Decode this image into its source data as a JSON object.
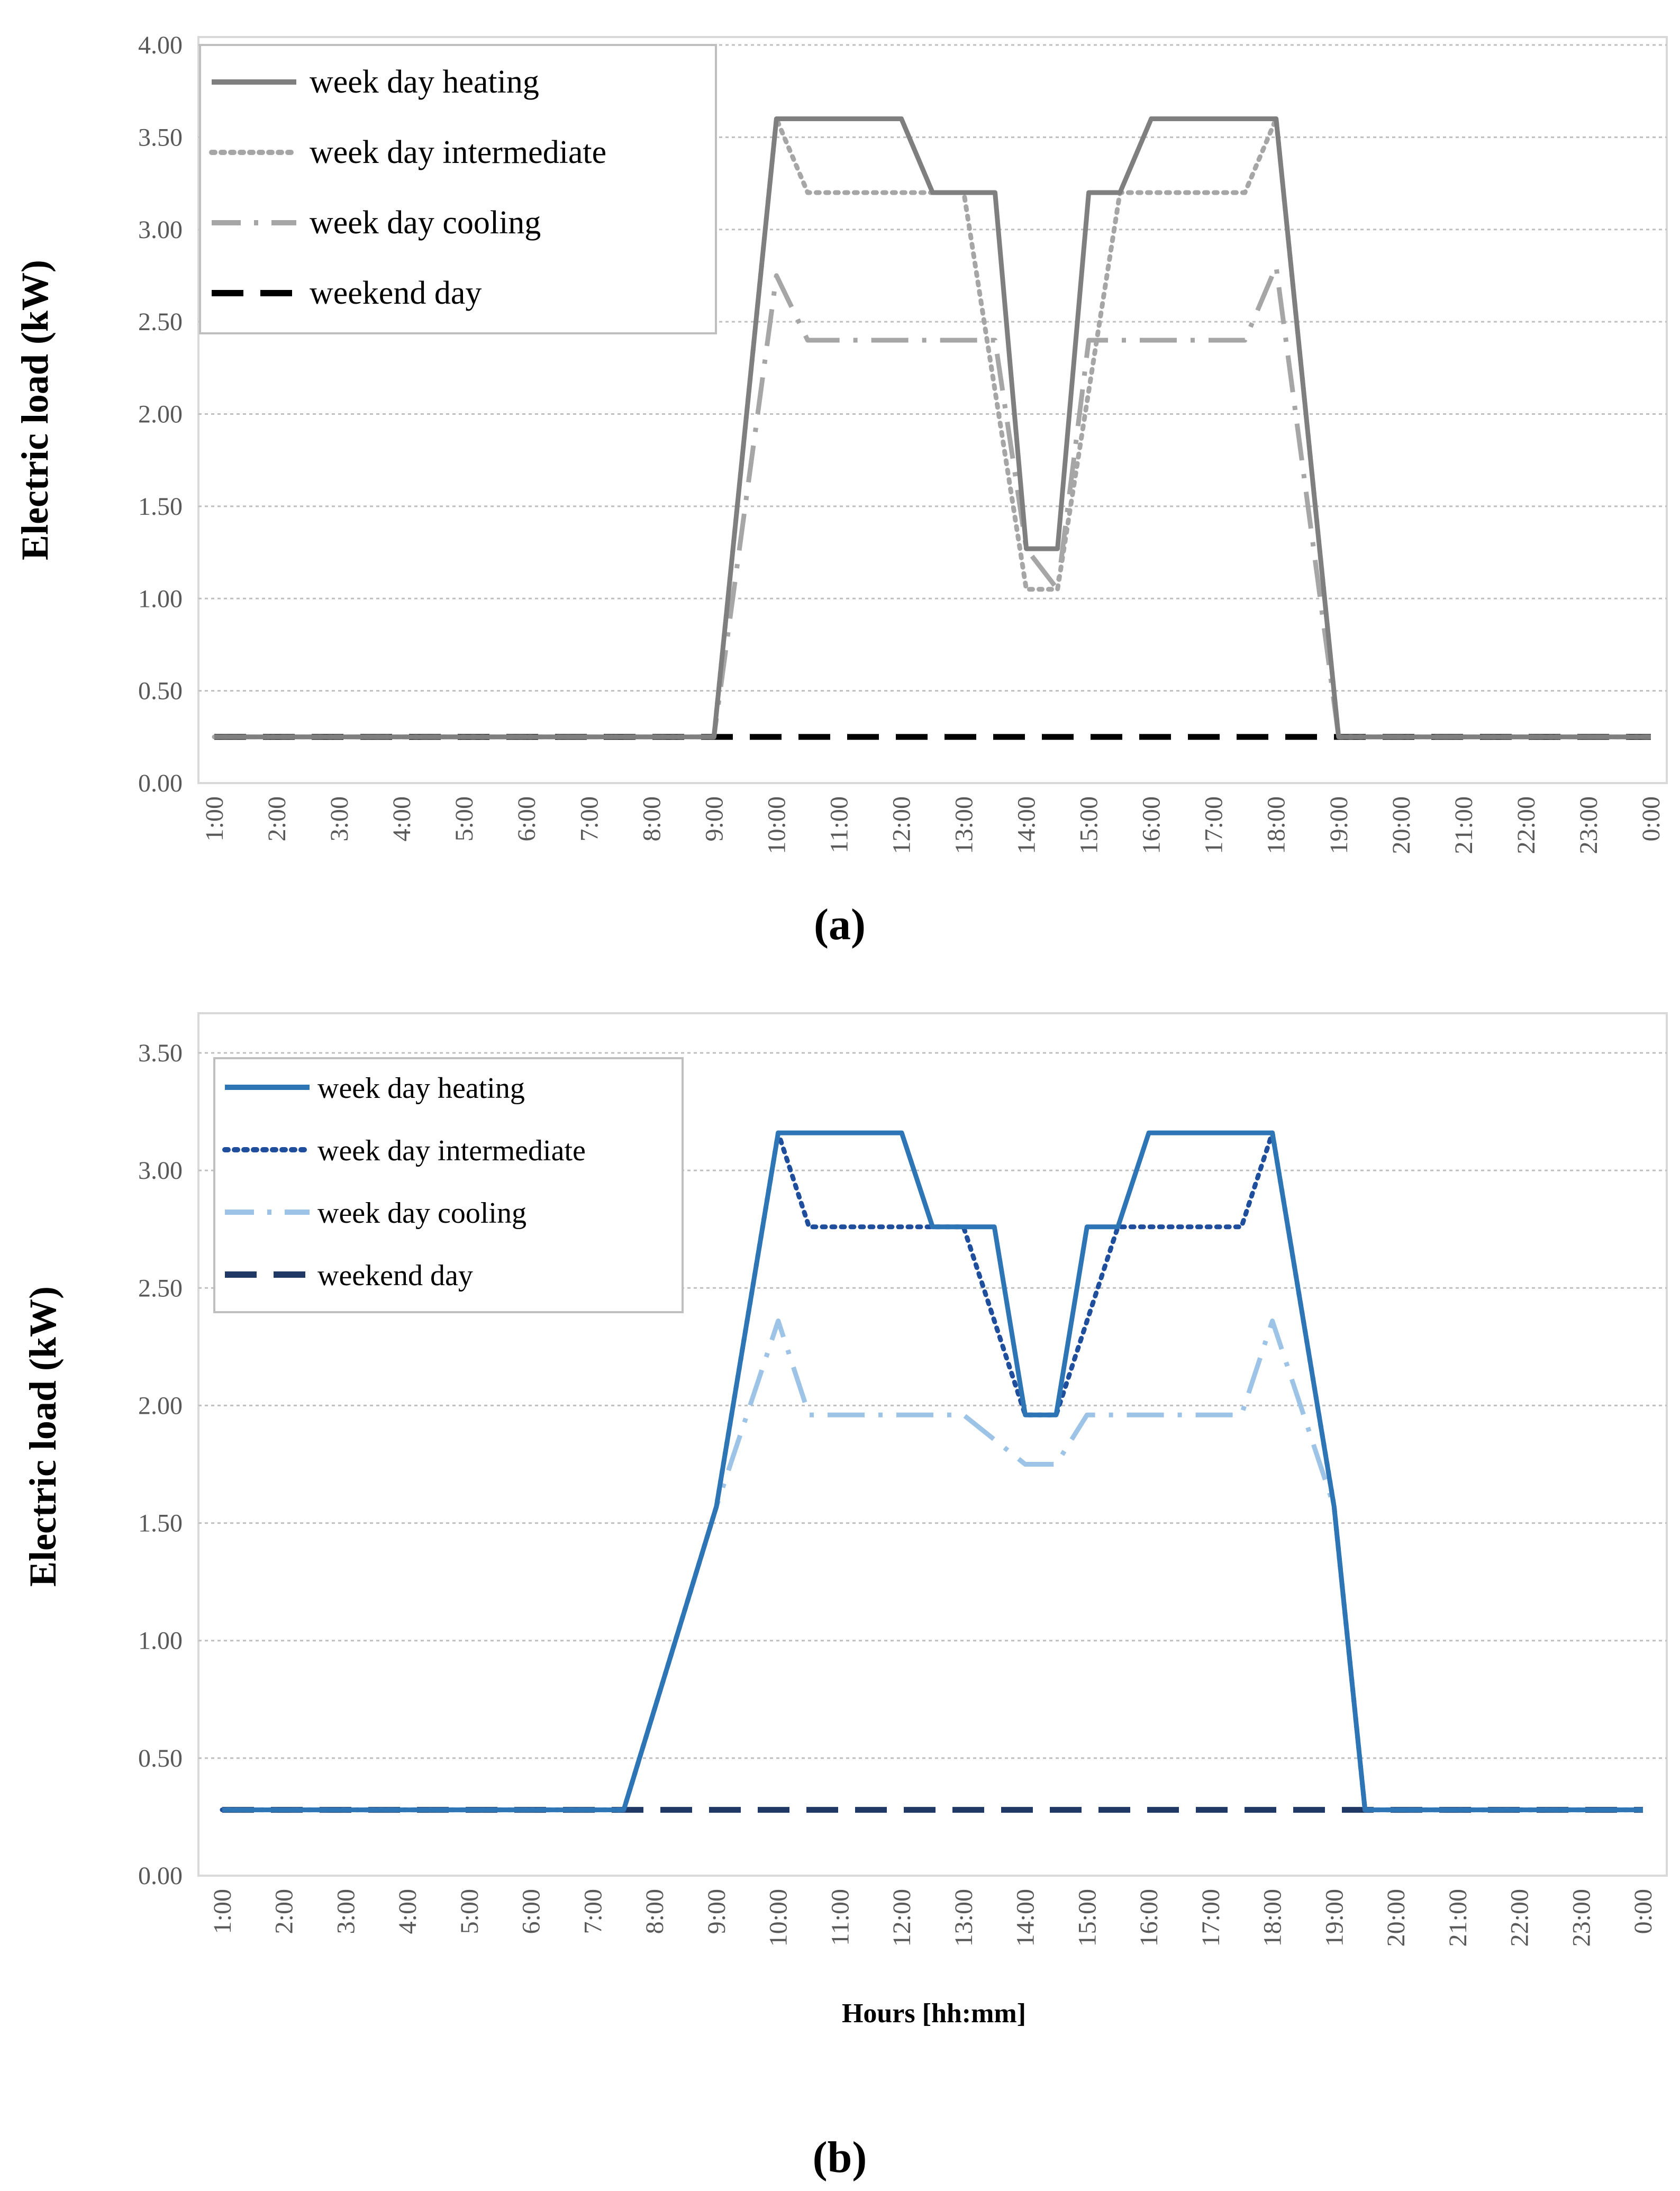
{
  "chart_data": [
    {
      "type": "line",
      "panel_label": "(a)",
      "ylabel": "Electric load (kW)",
      "xlabel": "",
      "ylim": [
        0,
        4
      ],
      "y_ticks": [
        "0.00",
        "0.50",
        "1.00",
        "1.50",
        "2.00",
        "2.50",
        "3.00",
        "3.50",
        "4.00"
      ],
      "x_ticks": [
        "1:00",
        "2:00",
        "3:00",
        "4:00",
        "5:00",
        "6:00",
        "7:00",
        "8:00",
        "9:00",
        "10:00",
        "11:00",
        "12:00",
        "13:00",
        "14:00",
        "15:00",
        "16:00",
        "17:00",
        "18:00",
        "19:00",
        "20:00",
        "21:00",
        "22:00",
        "23:00",
        "0:00"
      ],
      "grid": "horizontal",
      "legend_position": "top-left",
      "series": [
        {
          "name": "week day heating",
          "style": "solid",
          "color": "#7f7f7f",
          "points": [
            [
              1,
              0.25
            ],
            [
              9,
              0.25
            ],
            [
              10,
              3.6
            ],
            [
              12,
              3.6
            ],
            [
              12.5,
              3.2
            ],
            [
              13.5,
              3.2
            ],
            [
              14,
              1.27
            ],
            [
              14.5,
              1.27
            ],
            [
              15,
              3.2
            ],
            [
              15.5,
              3.2
            ],
            [
              16,
              3.6
            ],
            [
              18,
              3.6
            ],
            [
              19,
              0.25
            ],
            [
              24,
              0.25
            ]
          ]
        },
        {
          "name": "week day intermediate",
          "style": "dotted",
          "color": "#a6a6a6",
          "points": [
            [
              1,
              0.25
            ],
            [
              9,
              0.25
            ],
            [
              10,
              3.6
            ],
            [
              10.5,
              3.2
            ],
            [
              13,
              3.2
            ],
            [
              14,
              1.05
            ],
            [
              14.5,
              1.05
            ],
            [
              15.5,
              3.2
            ],
            [
              17.5,
              3.2
            ],
            [
              18,
              3.6
            ],
            [
              19,
              0.25
            ],
            [
              24,
              0.25
            ]
          ]
        },
        {
          "name": "week day cooling",
          "style": "dashdot",
          "color": "#a6a6a6",
          "points": [
            [
              1,
              0.25
            ],
            [
              9,
              0.25
            ],
            [
              10,
              2.75
            ],
            [
              10.5,
              2.4
            ],
            [
              13.5,
              2.4
            ],
            [
              14,
              1.27
            ],
            [
              14.5,
              1.05
            ],
            [
              15,
              2.4
            ],
            [
              17.5,
              2.4
            ],
            [
              18,
              2.8
            ],
            [
              19,
              0.25
            ],
            [
              24,
              0.25
            ]
          ]
        },
        {
          "name": "weekend day",
          "style": "dashed",
          "color": "#000000",
          "points": [
            [
              1,
              0.25
            ],
            [
              24,
              0.25
            ]
          ]
        }
      ]
    },
    {
      "type": "line",
      "panel_label": "(b)",
      "ylabel": "Electric load (kW)",
      "xlabel": "Hours [hh:mm]",
      "ylim": [
        0,
        3.5
      ],
      "y_ticks": [
        "0.00",
        "0.50",
        "1.00",
        "1.50",
        "2.00",
        "2.50",
        "3.00",
        "3.50"
      ],
      "x_ticks": [
        "1:00",
        "2:00",
        "3:00",
        "4:00",
        "5:00",
        "6:00",
        "7:00",
        "8:00",
        "9:00",
        "10:00",
        "11:00",
        "12:00",
        "13:00",
        "14:00",
        "15:00",
        "16:00",
        "17:00",
        "18:00",
        "19:00",
        "20:00",
        "21:00",
        "22:00",
        "23:00",
        "0:00"
      ],
      "grid": "horizontal",
      "legend_position": "top-left",
      "series": [
        {
          "name": "week day heating",
          "style": "solid",
          "color": "#2e75b6",
          "points": [
            [
              1,
              0.28
            ],
            [
              7.5,
              0.28
            ],
            [
              9,
              1.57
            ],
            [
              10,
              3.16
            ],
            [
              12,
              3.16
            ],
            [
              12.5,
              2.76
            ],
            [
              13.5,
              2.76
            ],
            [
              14,
              1.96
            ],
            [
              14.5,
              1.96
            ],
            [
              15,
              2.76
            ],
            [
              15.5,
              2.76
            ],
            [
              16,
              3.16
            ],
            [
              18,
              3.16
            ],
            [
              19,
              1.57
            ],
            [
              19.5,
              0.28
            ],
            [
              24,
              0.28
            ]
          ]
        },
        {
          "name": "week day intermediate",
          "style": "dotted",
          "color": "#1f4e9c",
          "points": [
            [
              1,
              0.28
            ],
            [
              7.5,
              0.28
            ],
            [
              9,
              1.57
            ],
            [
              10,
              3.16
            ],
            [
              10.5,
              2.76
            ],
            [
              13,
              2.76
            ],
            [
              14,
              1.96
            ],
            [
              14.5,
              1.96
            ],
            [
              15.5,
              2.76
            ],
            [
              17.5,
              2.76
            ],
            [
              18,
              3.16
            ],
            [
              19,
              1.57
            ],
            [
              19.5,
              0.28
            ],
            [
              24,
              0.28
            ]
          ]
        },
        {
          "name": "week day cooling",
          "style": "dashdot",
          "color": "#9dc3e6",
          "points": [
            [
              1,
              0.28
            ],
            [
              7.5,
              0.28
            ],
            [
              9,
              1.57
            ],
            [
              10,
              2.36
            ],
            [
              10.5,
              1.96
            ],
            [
              13,
              1.96
            ],
            [
              14,
              1.75
            ],
            [
              14.5,
              1.75
            ],
            [
              15,
              1.96
            ],
            [
              17.5,
              1.96
            ],
            [
              18,
              2.36
            ],
            [
              19,
              1.57
            ],
            [
              19.5,
              0.28
            ],
            [
              24,
              0.28
            ]
          ]
        },
        {
          "name": "weekend day",
          "style": "dashed",
          "color": "#1f3864",
          "points": [
            [
              1,
              0.28
            ],
            [
              24,
              0.28
            ]
          ]
        }
      ]
    }
  ]
}
